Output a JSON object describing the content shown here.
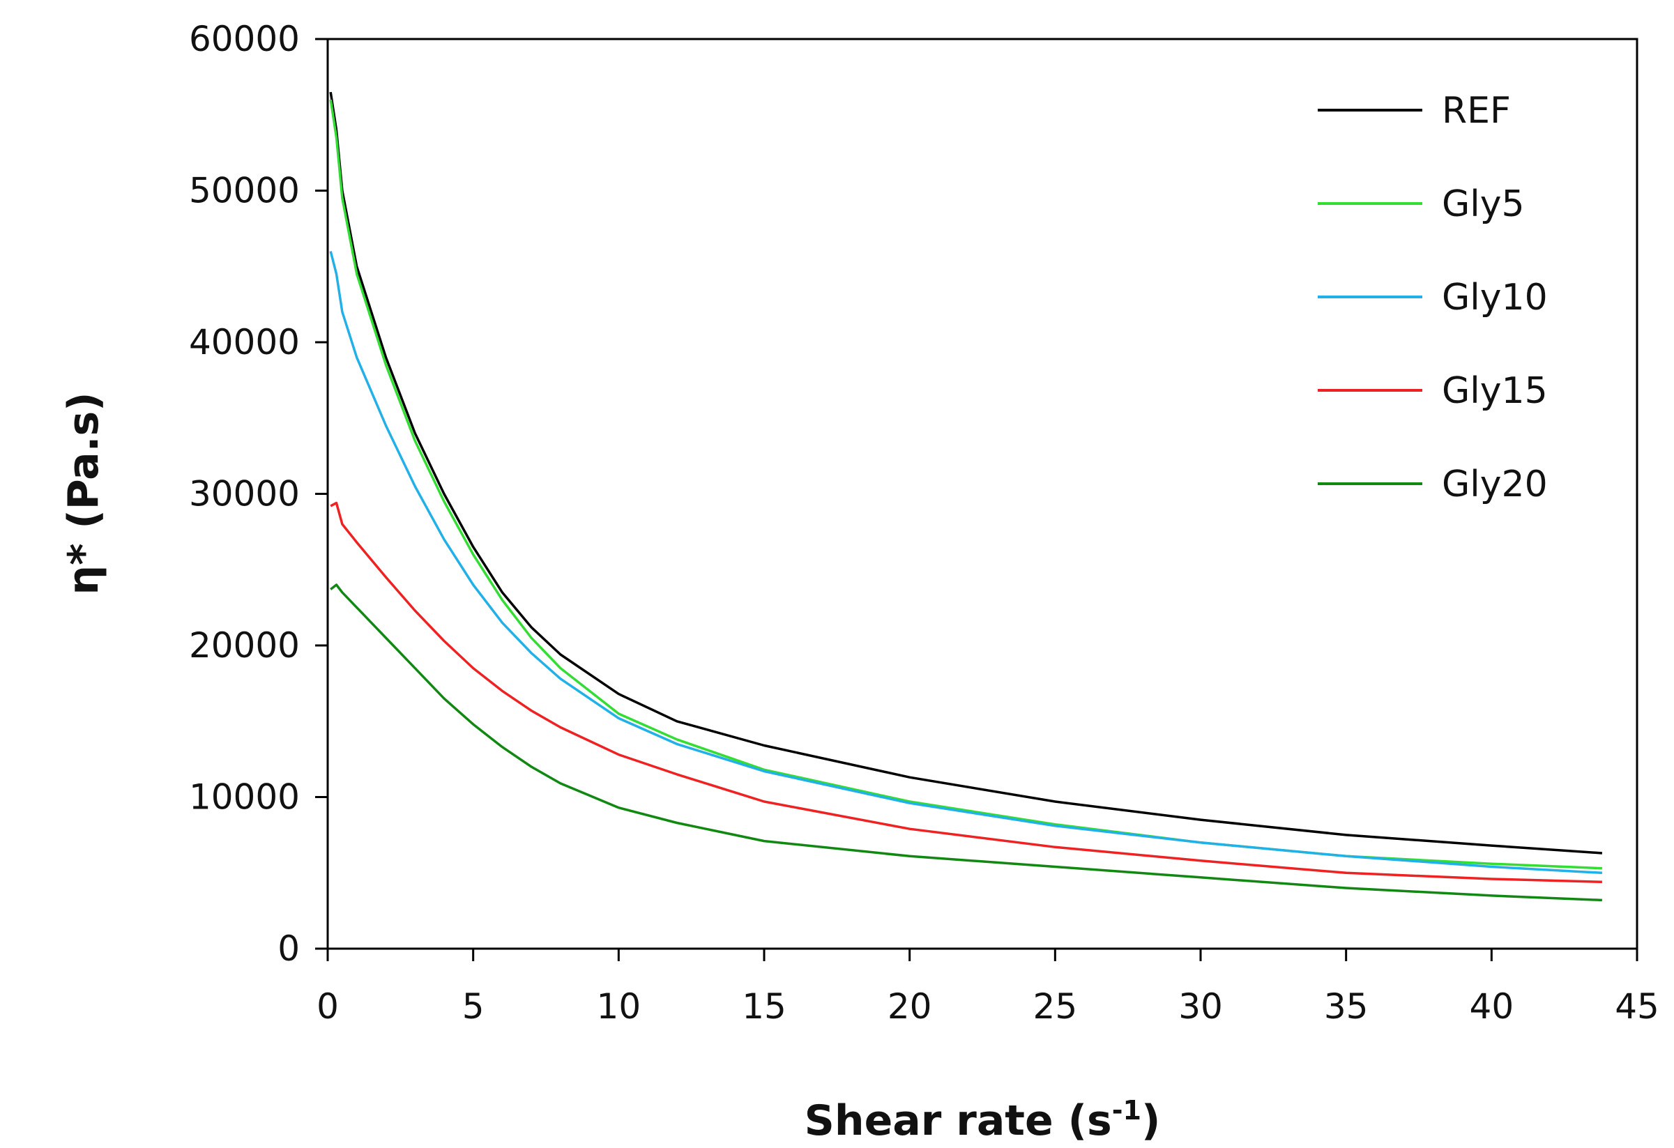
{
  "chart_data": {
    "type": "line",
    "xlabel": "Shear rate (s",
    "xlabel_sup": "-1",
    "xlabel_end": ")",
    "ylabel": "η* (Pa.s)",
    "xlim": [
      0,
      45
    ],
    "ylim": [
      0,
      60000
    ],
    "x_ticks": [
      0,
      5,
      10,
      15,
      20,
      25,
      30,
      35,
      40,
      45
    ],
    "y_ticks": [
      0,
      10000,
      20000,
      30000,
      40000,
      50000,
      60000
    ],
    "grid": false,
    "legend_position": "top-right",
    "series": [
      {
        "name": "REF",
        "color": "#000000",
        "points": [
          [
            0.1,
            56500
          ],
          [
            0.3,
            54000
          ],
          [
            0.5,
            50000
          ],
          [
            1,
            45000
          ],
          [
            2,
            39000
          ],
          [
            3,
            34000
          ],
          [
            4,
            30000
          ],
          [
            5,
            26500
          ],
          [
            6,
            23500
          ],
          [
            7,
            21200
          ],
          [
            8,
            19400
          ],
          [
            10,
            16800
          ],
          [
            12,
            15000
          ],
          [
            15,
            13400
          ],
          [
            20,
            11300
          ],
          [
            25,
            9700
          ],
          [
            30,
            8500
          ],
          [
            35,
            7500
          ],
          [
            40,
            6800
          ],
          [
            43.8,
            6300
          ]
        ]
      },
      {
        "name": "Gly5",
        "color": "#33dd33",
        "points": [
          [
            0.1,
            56000
          ],
          [
            0.3,
            53500
          ],
          [
            0.5,
            49500
          ],
          [
            1,
            44500
          ],
          [
            2,
            38500
          ],
          [
            3,
            33500
          ],
          [
            4,
            29500
          ],
          [
            5,
            26000
          ],
          [
            6,
            23000
          ],
          [
            7,
            20500
          ],
          [
            8,
            18500
          ],
          [
            10,
            15500
          ],
          [
            12,
            13800
          ],
          [
            15,
            11800
          ],
          [
            20,
            9700
          ],
          [
            25,
            8200
          ],
          [
            30,
            7000
          ],
          [
            35,
            6100
          ],
          [
            40,
            5600
          ],
          [
            43.8,
            5300
          ]
        ]
      },
      {
        "name": "Gly10",
        "color": "#22b0e8",
        "points": [
          [
            0.1,
            46000
          ],
          [
            0.3,
            44500
          ],
          [
            0.5,
            42000
          ],
          [
            1,
            39000
          ],
          [
            2,
            34500
          ],
          [
            3,
            30500
          ],
          [
            4,
            27000
          ],
          [
            5,
            24000
          ],
          [
            6,
            21500
          ],
          [
            7,
            19500
          ],
          [
            8,
            17800
          ],
          [
            10,
            15200
          ],
          [
            12,
            13500
          ],
          [
            15,
            11700
          ],
          [
            20,
            9600
          ],
          [
            25,
            8100
          ],
          [
            30,
            7000
          ],
          [
            35,
            6100
          ],
          [
            40,
            5400
          ],
          [
            43.8,
            5000
          ]
        ]
      },
      {
        "name": "Gly15",
        "color": "#ee2222",
        "points": [
          [
            0.1,
            29200
          ],
          [
            0.3,
            29400
          ],
          [
            0.5,
            28000
          ],
          [
            1,
            26800
          ],
          [
            2,
            24500
          ],
          [
            3,
            22300
          ],
          [
            4,
            20300
          ],
          [
            5,
            18500
          ],
          [
            6,
            17000
          ],
          [
            7,
            15700
          ],
          [
            8,
            14600
          ],
          [
            10,
            12800
          ],
          [
            12,
            11500
          ],
          [
            15,
            9700
          ],
          [
            20,
            7900
          ],
          [
            25,
            6700
          ],
          [
            30,
            5800
          ],
          [
            35,
            5000
          ],
          [
            40,
            4600
          ],
          [
            43.8,
            4400
          ]
        ]
      },
      {
        "name": "Gly20",
        "color": "#118811",
        "points": [
          [
            0.1,
            23700
          ],
          [
            0.3,
            24000
          ],
          [
            0.5,
            23500
          ],
          [
            1,
            22500
          ],
          [
            2,
            20500
          ],
          [
            3,
            18500
          ],
          [
            4,
            16500
          ],
          [
            5,
            14800
          ],
          [
            6,
            13300
          ],
          [
            7,
            12000
          ],
          [
            8,
            10900
          ],
          [
            10,
            9300
          ],
          [
            12,
            8300
          ],
          [
            15,
            7100
          ],
          [
            20,
            6100
          ],
          [
            25,
            5400
          ],
          [
            30,
            4700
          ],
          [
            35,
            4000
          ],
          [
            40,
            3500
          ],
          [
            43.8,
            3200
          ]
        ]
      }
    ]
  }
}
